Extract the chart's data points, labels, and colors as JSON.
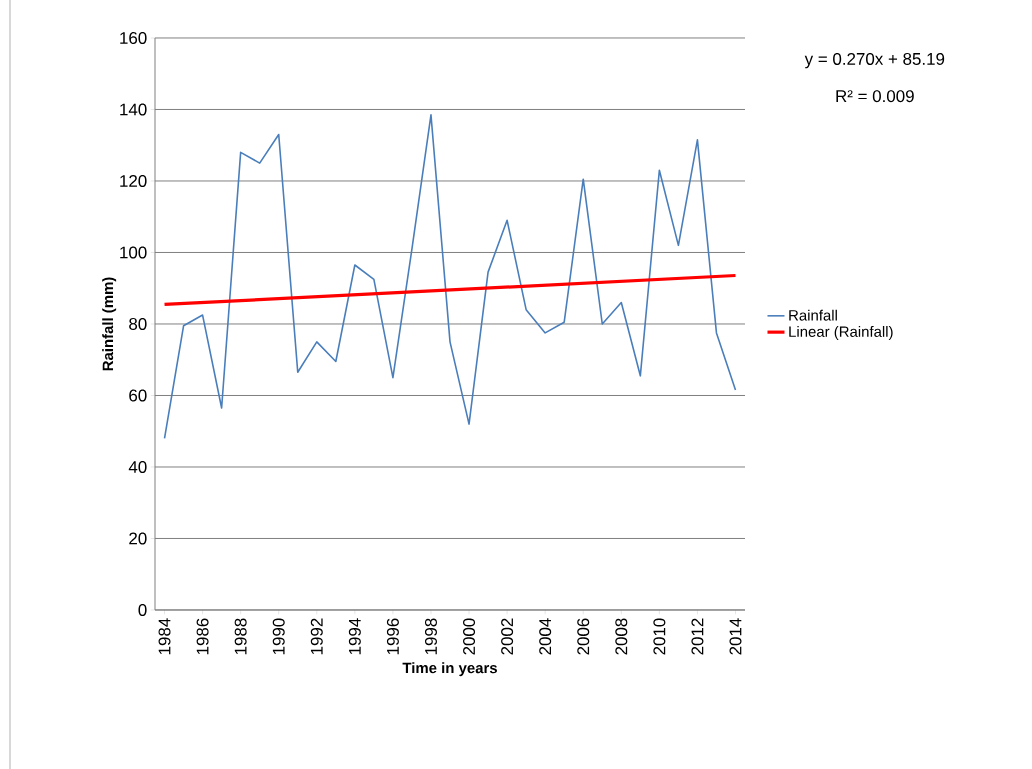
{
  "chart_data": {
    "type": "line",
    "xlabel": "Time in years",
    "ylabel": "Rainfall (mm)",
    "x": [
      1984,
      1985,
      1986,
      1987,
      1988,
      1989,
      1990,
      1991,
      1992,
      1993,
      1994,
      1995,
      1996,
      1997,
      1998,
      1999,
      2000,
      2001,
      2002,
      2003,
      2004,
      2005,
      2006,
      2007,
      2008,
      2009,
      2010,
      2011,
      2012,
      2013,
      2014
    ],
    "series": [
      {
        "name": "Rainfall",
        "color": "#4a7ebb",
        "values": [
          48,
          79.5,
          82.5,
          56.5,
          128,
          125,
          133,
          66.5,
          75,
          69.5,
          96.5,
          92.5,
          65,
          101,
          138.5,
          75,
          52,
          94.5,
          109,
          84,
          77.5,
          80.5,
          120.5,
          80,
          86,
          65.5,
          123,
          102,
          131.5,
          77.5,
          61.5
        ]
      },
      {
        "name": "Linear (Rainfall)",
        "color": "#ff0000",
        "x": [
          1984,
          2014
        ],
        "values": [
          85.46,
          93.56
        ]
      }
    ],
    "xlim": [
      1983.5,
      2014.5
    ],
    "xticks": [
      1984,
      1986,
      1988,
      1990,
      1992,
      1994,
      1996,
      1998,
      2000,
      2002,
      2004,
      2006,
      2008,
      2010,
      2012,
      2014
    ],
    "ylim": [
      0,
      160
    ],
    "yticks": [
      0,
      20,
      40,
      60,
      80,
      100,
      120,
      140,
      160
    ],
    "grid": "y",
    "legend": "right",
    "marker": "none",
    "line_style": "solid",
    "annotations": [
      "y = 0.270x + 85.19",
      "R² = 0.009"
    ]
  }
}
